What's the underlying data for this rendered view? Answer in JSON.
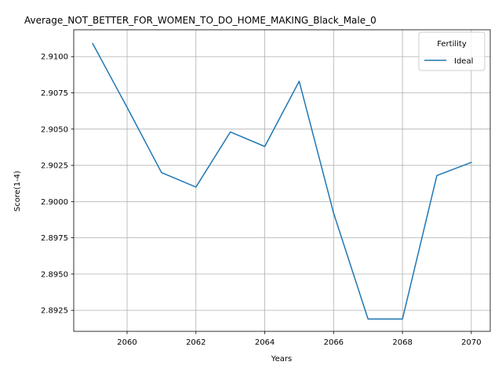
{
  "chart_data": {
    "type": "line",
    "title": "Average_NOT_BETTER_FOR_WOMEN_TO_DO_HOME_MAKING_Black_Male_0",
    "xlabel": "Years",
    "ylabel": "Score(1-4)",
    "xlim": [
      2058.45,
      2070.55
    ],
    "ylim": [
      2.89105,
      2.91185
    ],
    "x_ticks": [
      2060,
      2062,
      2064,
      2066,
      2068,
      2070
    ],
    "y_ticks": [
      2.8925,
      2.895,
      2.8975,
      2.9,
      2.9025,
      2.905,
      2.9075,
      2.91
    ],
    "y_tick_labels": [
      "2.8925",
      "2.8950",
      "2.8975",
      "2.9000",
      "2.9025",
      "2.9050",
      "2.9075",
      "2.9100"
    ],
    "grid": true,
    "legend": {
      "title": "Fertility",
      "position": "top-right"
    },
    "series": [
      {
        "name": "Ideal",
        "color": "#1f77b4",
        "x": [
          2059,
          2060,
          2061,
          2062,
          2063,
          2064,
          2065,
          2066,
          2067,
          2068,
          2069,
          2070
        ],
        "y": [
          2.9109,
          2.9065,
          2.902,
          2.901,
          2.9048,
          2.9038,
          2.9083,
          2.8992,
          2.8919,
          2.8919,
          2.9018,
          2.9027
        ]
      }
    ]
  }
}
